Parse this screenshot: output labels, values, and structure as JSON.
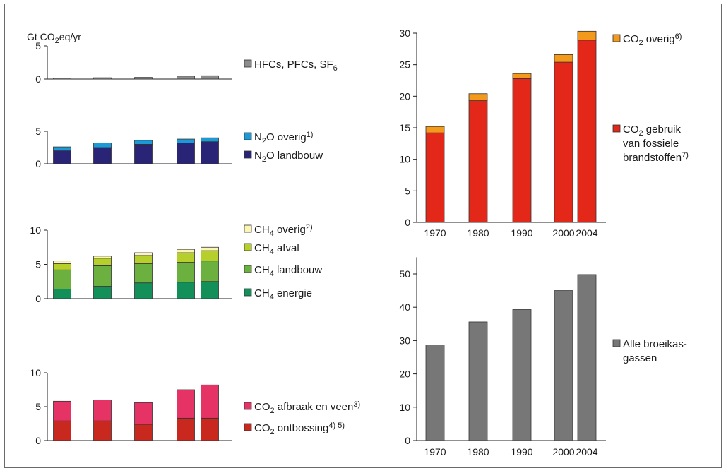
{
  "unit_label": {
    "pre": "Gt CO",
    "sub": "2",
    "post": "eq/yr"
  },
  "colors": {
    "hfc": "#8c8c8c",
    "n2o_overig": "#1a9ad7",
    "n2o_landbouw": "#2a2477",
    "ch4_overig": "#fbf6b4",
    "ch4_afval": "#b6cf2a",
    "ch4_landbouw": "#6cb13f",
    "ch4_energie": "#13905a",
    "co2_afbraak": "#e63366",
    "co2_ontbossing": "#c8281e",
    "co2_overig": "#f39a1c",
    "co2_fossiel": "#e32718",
    "alle": "#777777"
  },
  "chart_data": [
    {
      "id": "hfc",
      "type": "bar",
      "stacked": true,
      "categories": [
        "1970",
        "1980",
        "1990",
        "2000",
        "2004"
      ],
      "ylim": [
        0,
        5
      ],
      "yticks": [
        "5",
        "0"
      ],
      "series": [
        {
          "name": "HFCs, PFCs, SF",
          "name_sub": "6",
          "color_key": "hfc",
          "values": [
            0.15,
            0.2,
            0.25,
            0.45,
            0.5
          ]
        }
      ]
    },
    {
      "id": "n2o",
      "type": "bar",
      "stacked": true,
      "categories": [
        "1970",
        "1980",
        "1990",
        "2000",
        "2004"
      ],
      "ylim": [
        0,
        5
      ],
      "yticks": [
        "5",
        "0"
      ],
      "series": [
        {
          "name_pre": "N",
          "name_sub": "2",
          "name_post": "O landbouw",
          "color_key": "n2o_landbouw",
          "values": [
            2.0,
            2.5,
            3.0,
            3.2,
            3.4
          ]
        },
        {
          "name_pre": "N",
          "name_sub": "2",
          "name_post": "O overig",
          "name_sup": "1)",
          "color_key": "n2o_overig",
          "values": [
            0.6,
            0.7,
            0.6,
            0.6,
            0.6
          ]
        }
      ]
    },
    {
      "id": "ch4",
      "type": "bar",
      "stacked": true,
      "categories": [
        "1970",
        "1980",
        "1990",
        "2000",
        "2004"
      ],
      "ylim": [
        0,
        10
      ],
      "yticks": [
        "10",
        "5",
        "0"
      ],
      "series": [
        {
          "name_pre": "CH",
          "name_sub": "4",
          "name_post": " energie",
          "color_key": "ch4_energie",
          "values": [
            1.4,
            1.8,
            2.3,
            2.4,
            2.5
          ]
        },
        {
          "name_pre": "CH",
          "name_sub": "4",
          "name_post": " landbouw",
          "color_key": "ch4_landbouw",
          "values": [
            2.8,
            3.0,
            2.8,
            2.9,
            3.0
          ]
        },
        {
          "name_pre": "CH",
          "name_sub": "4",
          "name_post": " afval",
          "color_key": "ch4_afval",
          "values": [
            0.9,
            1.1,
            1.2,
            1.4,
            1.5
          ]
        },
        {
          "name_pre": "CH",
          "name_sub": "4",
          "name_post": " overig",
          "name_sup": "2)",
          "color_key": "ch4_overig",
          "values": [
            0.4,
            0.3,
            0.4,
            0.5,
            0.5
          ]
        }
      ]
    },
    {
      "id": "co2lu",
      "type": "bar",
      "stacked": true,
      "categories": [
        "1970",
        "1980",
        "1990",
        "2000",
        "2004"
      ],
      "ylim": [
        0,
        10
      ],
      "yticks": [
        "10",
        "5",
        "0"
      ],
      "series": [
        {
          "name_pre": "CO",
          "name_sub": "2",
          "name_post": " ontbossing",
          "name_sup": "4) 5)",
          "color_key": "co2_ontbossing",
          "values": [
            2.9,
            2.9,
            2.4,
            3.3,
            3.3
          ]
        },
        {
          "name_pre": "CO",
          "name_sub": "2",
          "name_post": " afbraak en veen",
          "name_sup": "3)",
          "color_key": "co2_afbraak",
          "values": [
            2.9,
            3.1,
            3.2,
            4.2,
            4.9
          ]
        }
      ]
    },
    {
      "id": "co2fossil",
      "type": "bar",
      "stacked": true,
      "categories": [
        "1970",
        "1980",
        "1990",
        "2000",
        "2004"
      ],
      "ylim": [
        0,
        30
      ],
      "yticks": [
        "30",
        "25",
        "20",
        "15",
        "10",
        "5",
        "0"
      ],
      "series": [
        {
          "name_pre": "CO",
          "name_sub": "2",
          "name_post": " gebruik",
          "name_lines": [
            "van fossiele",
            "brandstoffen"
          ],
          "name_sup": "7)",
          "color_key": "co2_fossiel",
          "values": [
            14.2,
            19.3,
            22.8,
            25.4,
            28.9
          ]
        },
        {
          "name_pre": "CO",
          "name_sub": "2",
          "name_post": " overig",
          "name_sup": "6)",
          "color_key": "co2_overig",
          "values": [
            1.0,
            1.1,
            0.8,
            1.2,
            1.4
          ]
        }
      ]
    },
    {
      "id": "alle",
      "type": "bar",
      "categories": [
        "1970",
        "1980",
        "1990",
        "2000",
        "2004"
      ],
      "ylim": [
        0,
        55
      ],
      "yticks": [
        "50",
        "40",
        "30",
        "20",
        "10",
        "0"
      ],
      "series": [
        {
          "name": "Alle broeikas-",
          "name_lines": [
            "gassen"
          ],
          "color_key": "alle",
          "values": [
            28.7,
            35.6,
            39.3,
            45.0,
            49.8
          ]
        }
      ]
    }
  ]
}
